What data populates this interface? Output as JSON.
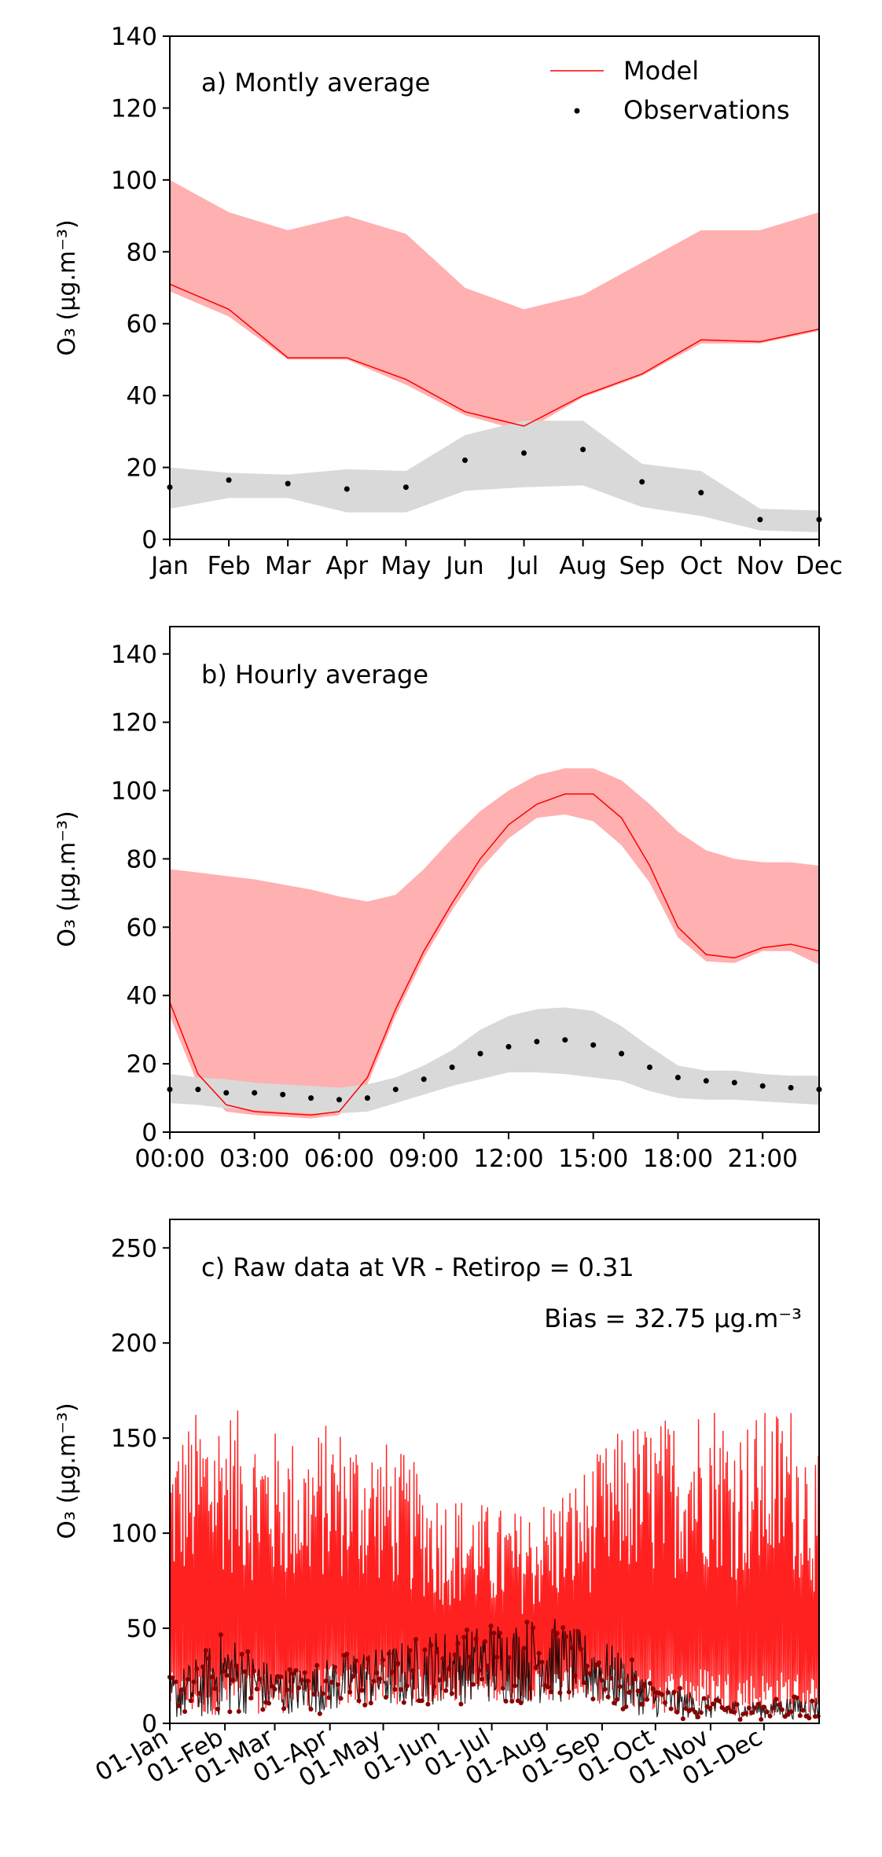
{
  "colors": {
    "model": "#ff0000",
    "model_band": "#ffb0b0",
    "obs": "#000000",
    "obs_band": "#d9d9d9",
    "raw_model": "#ff2020",
    "raw_obs": "#8b0000"
  },
  "ylabel": "O₃ (μg.m⁻³)",
  "legend": {
    "model_label": "Model",
    "obs_label": "Observations"
  },
  "chart_data": [
    {
      "type": "line",
      "title": "a) Montly average",
      "ylabel": "O₃ (μg.m⁻³)",
      "categories": [
        "Jan",
        "Feb",
        "Mar",
        "Apr",
        "May",
        "Jun",
        "Jul",
        "Aug",
        "Sep",
        "Oct",
        "Nov",
        "Dec"
      ],
      "ylim": [
        0,
        140
      ],
      "yticks": [
        0,
        20,
        40,
        60,
        80,
        100,
        120,
        140
      ],
      "legend_position": "top-right",
      "series": [
        {
          "name": "Model",
          "values": [
            71,
            64,
            50.5,
            50.5,
            44.5,
            35.5,
            31.5,
            40,
            46,
            55.5,
            55,
            58.5
          ]
        },
        {
          "name": "Observations",
          "values": [
            14.5,
            16.5,
            15.5,
            14,
            14.5,
            22,
            24,
            25,
            16,
            13,
            5.5,
            5.5
          ]
        }
      ],
      "model_band": {
        "upper": [
          100,
          91,
          86,
          90,
          85,
          70,
          64,
          68,
          77,
          86,
          86,
          91
        ],
        "lower": [
          69,
          62,
          50,
          50,
          43,
          34.5,
          30,
          39.5,
          45.5,
          54.5,
          54.5,
          58
        ]
      },
      "obs_band": {
        "upper": [
          20,
          18.5,
          18,
          19.5,
          19,
          29,
          33,
          33,
          21,
          19,
          8.5,
          8
        ],
        "lower": [
          8.5,
          11.5,
          11.5,
          7.5,
          7.5,
          13.5,
          14.5,
          15,
          9,
          6.5,
          2.5,
          2
        ]
      }
    },
    {
      "type": "line",
      "title": "b) Hourly average",
      "ylabel": "O₃ (μg.m⁻³)",
      "x": [
        0,
        1,
        2,
        3,
        4,
        5,
        6,
        7,
        8,
        9,
        10,
        11,
        12,
        13,
        14,
        15,
        16,
        17,
        18,
        19,
        20,
        21,
        22,
        23
      ],
      "xticks": [
        0,
        3,
        6,
        9,
        12,
        15,
        18,
        21
      ],
      "xtick_labels": [
        "00:00",
        "03:00",
        "06:00",
        "09:00",
        "12:00",
        "15:00",
        "18:00",
        "21:00"
      ],
      "xlim": [
        0,
        23
      ],
      "ylim": [
        0,
        148
      ],
      "yticks": [
        0,
        20,
        40,
        60,
        80,
        100,
        120,
        140
      ],
      "series": [
        {
          "name": "Model",
          "values": [
            38,
            17,
            8,
            6,
            5.5,
            5,
            6,
            16,
            36,
            53,
            67,
            80,
            90,
            96,
            99,
            99,
            92,
            78,
            60,
            52,
            51,
            54,
            55,
            53
          ]
        },
        {
          "name": "Observations",
          "values": [
            12.5,
            12.5,
            11.5,
            11.5,
            11,
            10,
            9.5,
            10,
            12.5,
            15.5,
            19,
            23,
            25,
            26.5,
            27,
            25.5,
            23,
            19,
            16,
            15,
            14.5,
            13.5,
            13,
            12.5
          ]
        }
      ],
      "model_band": {
        "upper": [
          77,
          76,
          75,
          74,
          72.5,
          71,
          69,
          67.5,
          69.5,
          77,
          86,
          94,
          100,
          104.5,
          106.5,
          106.5,
          103,
          96,
          88,
          82.5,
          80,
          79,
          79,
          78
        ],
        "lower": [
          34,
          14,
          6,
          5,
          4.5,
          4,
          5,
          14,
          34,
          51,
          65,
          77,
          86,
          92,
          93,
          91,
          84,
          73,
          57,
          50,
          49.5,
          53,
          53,
          49
        ]
      },
      "obs_band": {
        "upper": [
          17,
          16,
          15.5,
          14.5,
          14,
          13.5,
          13,
          14,
          16,
          19.5,
          24,
          30,
          34,
          36,
          36.5,
          35.5,
          31,
          25,
          19.5,
          18,
          18,
          17,
          16.5,
          16.5
        ],
        "lower": [
          8.5,
          8,
          7,
          6.5,
          6,
          5.5,
          5.5,
          6,
          8.5,
          11,
          13.5,
          15.5,
          17.5,
          17.5,
          17,
          16,
          15,
          12,
          10,
          9.5,
          9.5,
          9,
          8.5,
          8
        ]
      }
    },
    {
      "type": "line",
      "title": "c) Raw data at VR - Retiro",
      "annotations": [
        "ρ = 0.31",
        "Bias = 32.75 μg.m⁻³"
      ],
      "ylabel": "O₃ (μg.m⁻³)",
      "xtick_labels": [
        "01-Jan",
        "01-Feb",
        "01-Mar",
        "01-Apr",
        "01-May",
        "01-Jun",
        "01-Jul",
        "01-Aug",
        "01-Sep",
        "01-Oct",
        "01-Nov",
        "01-Dec"
      ],
      "xticks_day": [
        0,
        31,
        59,
        90,
        120,
        151,
        181,
        212,
        243,
        273,
        304,
        334
      ],
      "xlim_day": [
        0,
        365
      ],
      "ylim": [
        0,
        265
      ],
      "yticks": [
        0,
        50,
        100,
        150,
        200,
        250
      ],
      "series": [
        {
          "name": "Model",
          "envelope_day": [
            0,
            15,
            31,
            45,
            59,
            75,
            90,
            105,
            120,
            135,
            151,
            166,
            181,
            197,
            212,
            228,
            243,
            258,
            273,
            289,
            304,
            319,
            334,
            350,
            365
          ],
          "envelope_max": [
            150,
            165,
            170,
            160,
            155,
            150,
            160,
            155,
            150,
            140,
            125,
            120,
            115,
            112,
            120,
            130,
            145,
            160,
            160,
            165,
            175,
            160,
            165,
            170,
            140
          ],
          "envelope_min": [
            5,
            3,
            5,
            5,
            5,
            6,
            8,
            8,
            10,
            10,
            10,
            12,
            12,
            12,
            12,
            12,
            10,
            8,
            5,
            5,
            5,
            4,
            3,
            3,
            5
          ]
        },
        {
          "name": "Observations",
          "envelope_day": [
            0,
            15,
            31,
            45,
            59,
            75,
            90,
            105,
            120,
            135,
            151,
            166,
            181,
            197,
            212,
            228,
            243,
            258,
            273,
            289,
            304,
            319,
            334,
            350,
            365
          ],
          "envelope_max": [
            25,
            35,
            50,
            40,
            30,
            30,
            35,
            40,
            40,
            45,
            50,
            50,
            55,
            55,
            58,
            50,
            45,
            35,
            22,
            18,
            15,
            12,
            12,
            15,
            15
          ],
          "envelope_min": [
            2,
            2,
            3,
            5,
            5,
            5,
            5,
            8,
            8,
            8,
            10,
            10,
            10,
            10,
            10,
            10,
            8,
            5,
            3,
            2,
            2,
            2,
            2,
            2,
            2
          ]
        }
      ]
    }
  ]
}
